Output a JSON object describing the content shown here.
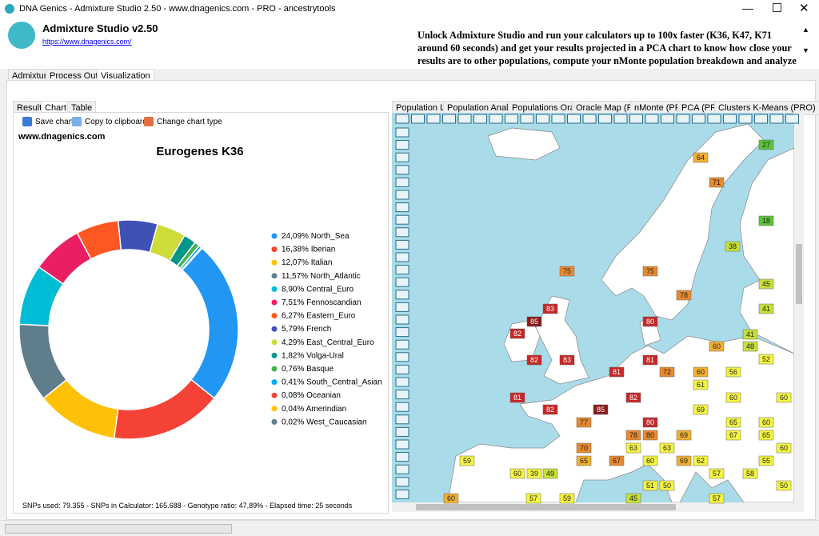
{
  "window": {
    "title": "DNA Genics - Admixture Studio 2.50 - www.dnagenics.com - PRO - ancestrytools"
  },
  "header": {
    "app_name": "Admixture Studio v2.50",
    "link": "https://www.dnagenics.com/",
    "promo": "Unlock Admixture Studio and run your calculators up to 100x faster (K36, K47, K71 around 60 seconds) and get your results projected in a PCA chart to know how close your results are to other populations, compute your nMonte population breakdown and analyze by segment your"
  },
  "main_tabs": [
    "Admixture",
    "Process Output",
    "Visualization"
  ],
  "sub_tabs": [
    "Results",
    "Chart",
    "Table"
  ],
  "toolbar": [
    "Save chart",
    "Copy to clipboard",
    "Change chart type"
  ],
  "watermark": "www.dnagenics.com",
  "chart_data": {
    "type": "pie",
    "donut": true,
    "title": "Eurogenes K36",
    "categories": [
      "North_Sea",
      "Iberian",
      "Italian",
      "North_Atlantic",
      "Central_Euro",
      "Fennoscandian",
      "Eastern_Euro",
      "French",
      "East_Central_Euro",
      "Volga-Ural",
      "Basque",
      "South_Central_Asian",
      "Oceanian",
      "Amerindian",
      "West_Caucasian"
    ],
    "values": [
      24.09,
      16.38,
      12.07,
      11.57,
      8.9,
      7.51,
      6.27,
      5.79,
      4.29,
      1.82,
      0.76,
      0.41,
      0.08,
      0.04,
      0.02
    ],
    "value_labels": [
      "24,09%",
      "16,38%",
      "12,07%",
      "11,57%",
      "8,90%",
      "7,51%",
      "6,27%",
      "5,79%",
      "4,29%",
      "1,82%",
      "0,76%",
      "0,41%",
      "0,08%",
      "0,04%",
      "0,02%"
    ],
    "colors": [
      "#2196f3",
      "#f44336",
      "#ffc107",
      "#607d8b",
      "#00bcd4",
      "#e91e63",
      "#ff5722",
      "#3f51b5",
      "#cddc39",
      "#009688",
      "#4caf50",
      "#03a9f4",
      "#f44336",
      "#ffc107",
      "#607d8b"
    ]
  },
  "footer": "SNPs used: 79.355 - SNPs in Calculator: 165.688 - Genotype ratio: 47,89% - Elapsed time: 25 seconds",
  "map_tabs": [
    "Population List",
    "Population Analysis",
    "Populations Oracle",
    "Oracle Map (PRO)",
    "nMonte (PRO)",
    "PCA (PRO)",
    "Clusters K-Means (PRO)"
  ],
  "map": {
    "labels": [
      "27",
      "64",
      "71",
      "18",
      "38",
      "45",
      "75",
      "75",
      "78",
      "41",
      "83",
      "85",
      "80",
      "82",
      "41",
      "60",
      "48",
      "52",
      "82",
      "83",
      "81",
      "81",
      "72",
      "60",
      "56",
      "61",
      "81",
      "82",
      "60",
      "60",
      "82",
      "85",
      "69",
      "77",
      "80",
      "65",
      "60",
      "78",
      "80",
      "69",
      "67",
      "65",
      "70",
      "63",
      "63",
      "60",
      "59",
      "65",
      "67",
      "60",
      "69",
      "62",
      "55",
      "60",
      "39",
      "49",
      "57",
      "58",
      "51",
      "50",
      "50",
      "60",
      "57",
      "59",
      "45",
      "57"
    ]
  }
}
